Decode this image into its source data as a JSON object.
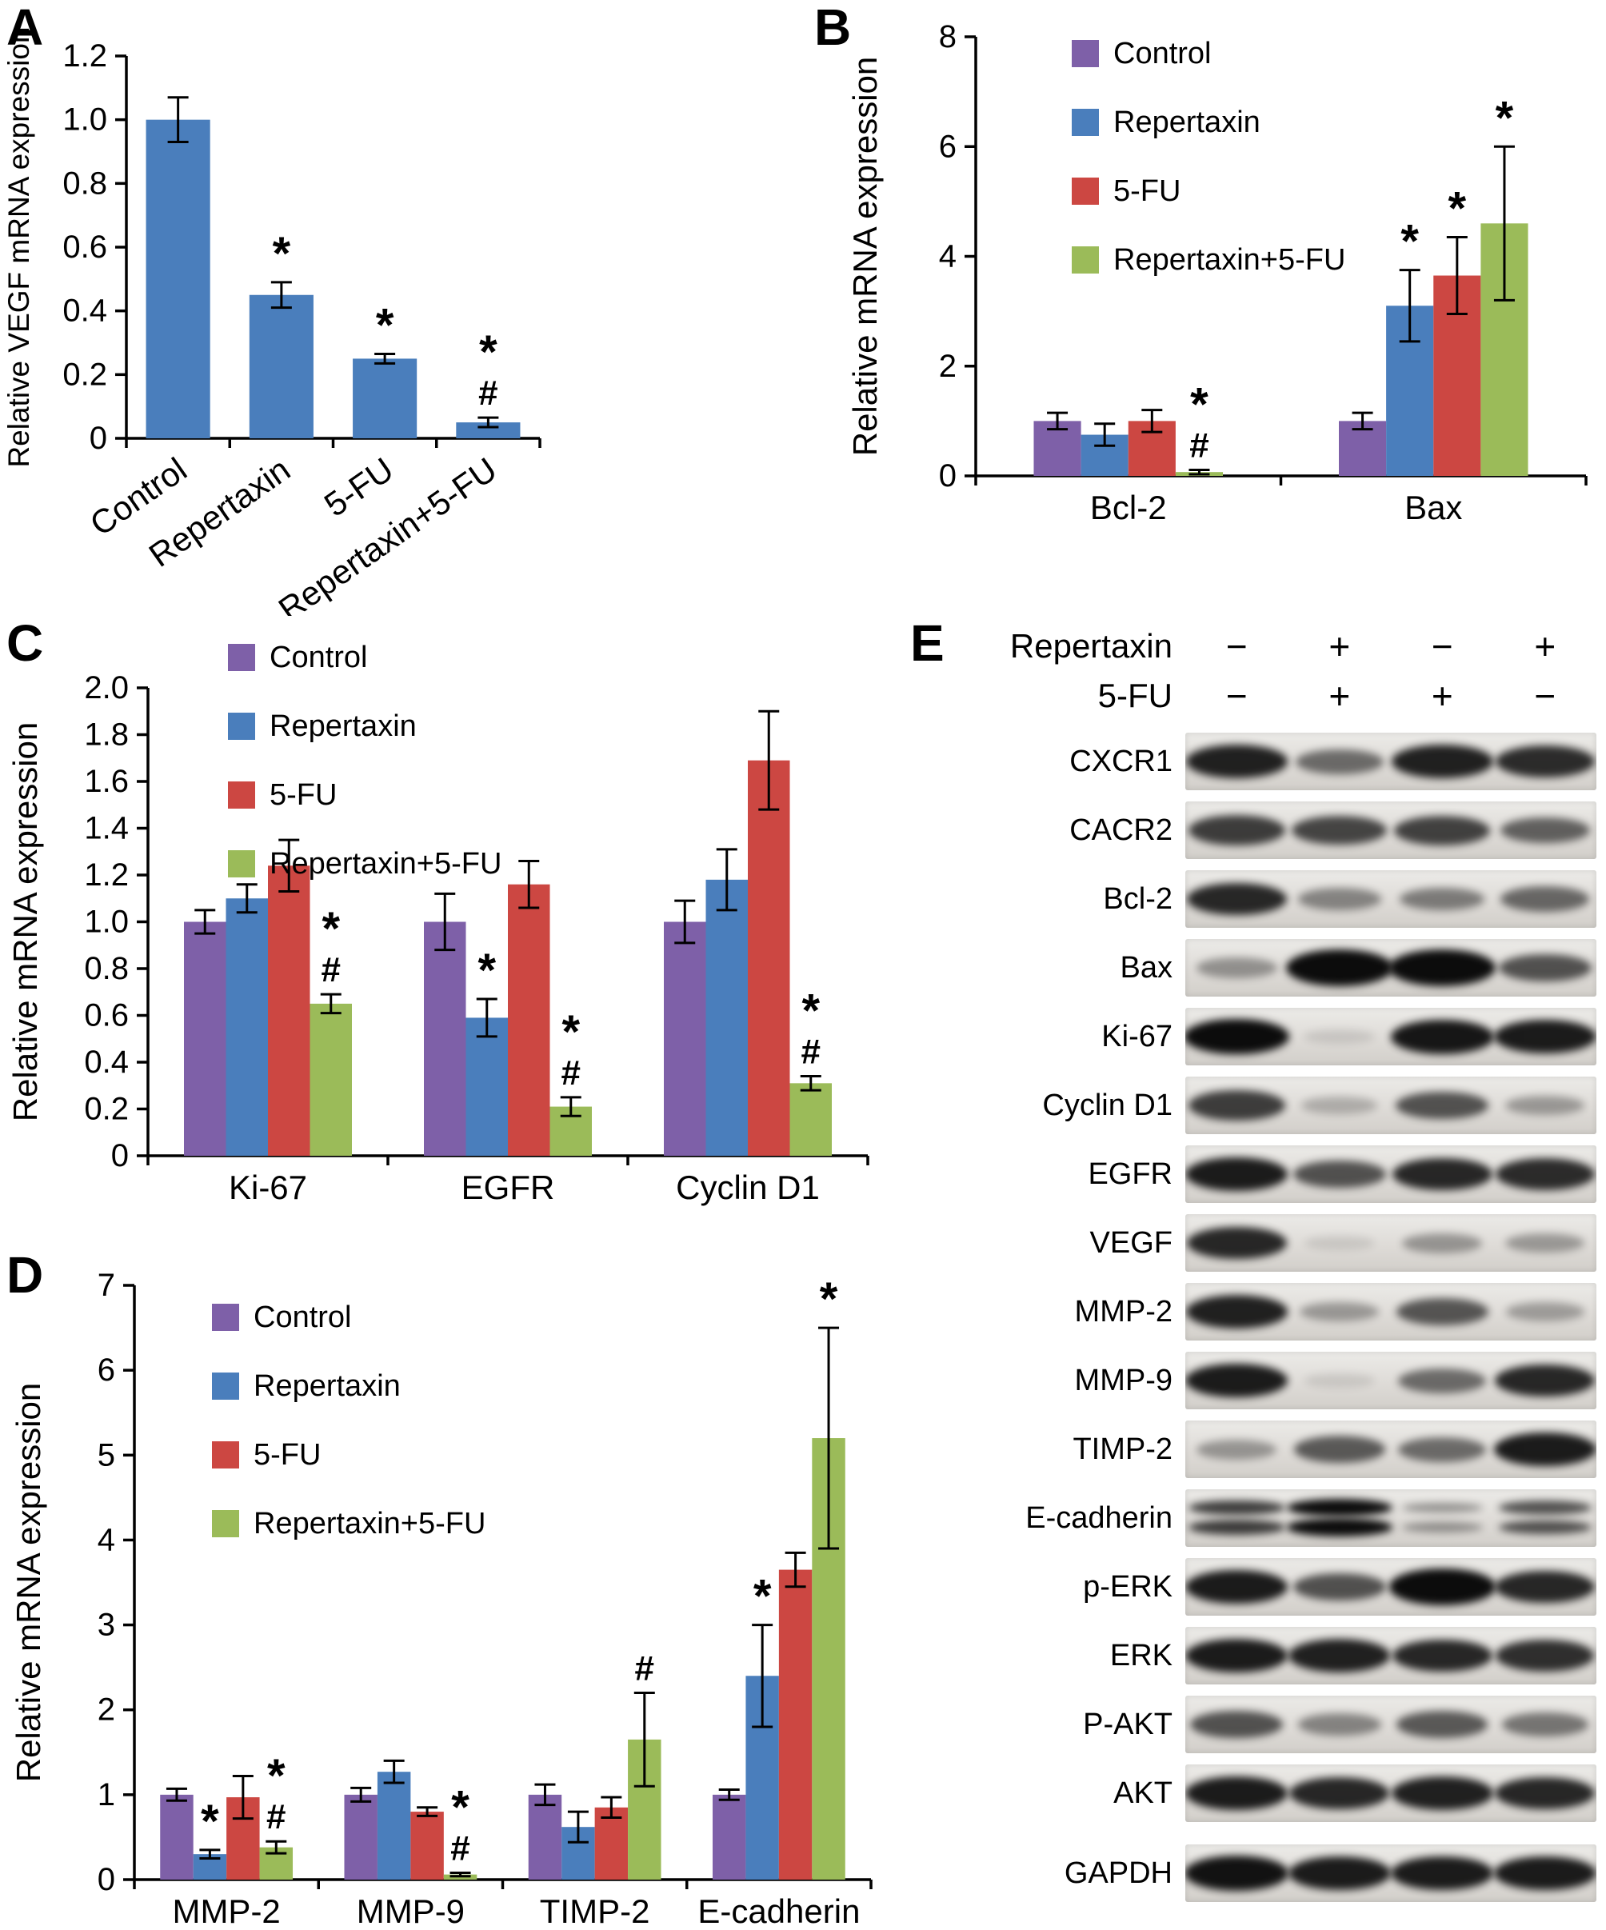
{
  "chart_data": [
    {
      "id": "A",
      "panel_label": "A",
      "type": "bar",
      "ylabel": "Relative VEGF mRNA expression",
      "ylim": [
        0,
        1.2
      ],
      "ytick_step": 0.2,
      "ytick_decimals": 1,
      "grid": false,
      "legend_position": "none",
      "categories": [
        "Control",
        "Repertaxin",
        "5-FU",
        "Repertaxin+5-FU"
      ],
      "series": [
        {
          "name": "VEGF",
          "color": "#4a7ebc",
          "values": [
            1.0,
            0.45,
            0.25,
            0.05
          ],
          "errors": [
            0.07,
            0.04,
            0.015,
            0.015
          ],
          "annotations": [
            "",
            "*",
            "*",
            "*#"
          ]
        }
      ],
      "legend": false,
      "xlabel_rotate": true
    },
    {
      "id": "B",
      "panel_label": "B",
      "type": "grouped-bar",
      "ylabel": "Relative mRNA expression",
      "ylim": [
        0,
        8
      ],
      "ytick_step": 2,
      "ytick_decimals": 0,
      "grid": false,
      "legend_position": "top-left-inside",
      "categories": [
        "Bcl-2",
        "Bax"
      ],
      "series": [
        {
          "name": "Control",
          "color": "#7e60a8",
          "values": [
            1.0,
            1.0
          ],
          "errors": [
            0.15,
            0.15
          ],
          "annotations": [
            "",
            ""
          ]
        },
        {
          "name": "Repertaxin",
          "color": "#4a7ebc",
          "values": [
            0.75,
            3.1
          ],
          "errors": [
            0.2,
            0.65
          ],
          "annotations": [
            "",
            "*"
          ]
        },
        {
          "name": "5-FU",
          "color": "#cc4742",
          "values": [
            1.0,
            3.65
          ],
          "errors": [
            0.2,
            0.7
          ],
          "annotations": [
            "",
            "*"
          ]
        },
        {
          "name": "Repertaxin+5-FU",
          "color": "#9bbb59",
          "values": [
            0.07,
            4.6
          ],
          "errors": [
            0.04,
            1.4
          ],
          "annotations": [
            "*#",
            "*"
          ]
        }
      ],
      "legend": true,
      "xlabel_rotate": false
    },
    {
      "id": "C",
      "panel_label": "C",
      "type": "grouped-bar",
      "ylabel": "Relative mRNA expression",
      "ylim": [
        0,
        2.0
      ],
      "ytick_step": 0.2,
      "ytick_decimals": 1,
      "grid": false,
      "legend_position": "top-left-inside",
      "categories": [
        "Ki-67",
        "EGFR",
        "Cyclin D1"
      ],
      "series": [
        {
          "name": "Control",
          "color": "#7e60a8",
          "values": [
            1.0,
            1.0,
            1.0
          ],
          "errors": [
            0.05,
            0.12,
            0.09
          ],
          "annotations": [
            "",
            "",
            ""
          ]
        },
        {
          "name": "Repertaxin",
          "color": "#4a7ebc",
          "values": [
            1.1,
            0.59,
            1.18
          ],
          "errors": [
            0.06,
            0.08,
            0.13
          ],
          "annotations": [
            "",
            "*",
            ""
          ]
        },
        {
          "name": "5-FU",
          "color": "#cc4742",
          "values": [
            1.24,
            1.16,
            1.69
          ],
          "errors": [
            0.11,
            0.1,
            0.21
          ],
          "annotations": [
            "",
            "",
            ""
          ]
        },
        {
          "name": "Repertaxin+5-FU",
          "color": "#9bbb59",
          "values": [
            0.65,
            0.21,
            0.31
          ],
          "errors": [
            0.04,
            0.04,
            0.03
          ],
          "annotations": [
            "*#",
            "*#",
            "*#"
          ]
        }
      ],
      "legend": true,
      "xlabel_rotate": false
    },
    {
      "id": "D",
      "panel_label": "D",
      "type": "grouped-bar",
      "ylabel": "Relative mRNA expression",
      "ylim": [
        0,
        7
      ],
      "ytick_step": 1,
      "ytick_decimals": 0,
      "grid": false,
      "legend_position": "top-left-inside",
      "categories": [
        "MMP-2",
        "MMP-9",
        "TIMP-2",
        "E-cadherin"
      ],
      "series": [
        {
          "name": "Control",
          "color": "#7e60a8",
          "values": [
            1.0,
            1.0,
            1.0,
            1.0
          ],
          "errors": [
            0.07,
            0.08,
            0.12,
            0.06
          ],
          "annotations": [
            "",
            "",
            "",
            ""
          ]
        },
        {
          "name": "Repertaxin",
          "color": "#4a7ebc",
          "values": [
            0.3,
            1.27,
            0.62,
            2.4
          ],
          "errors": [
            0.05,
            0.13,
            0.18,
            0.6
          ],
          "annotations": [
            "*",
            "",
            "",
            "*"
          ]
        },
        {
          "name": "5-FU",
          "color": "#cc4742",
          "values": [
            0.97,
            0.8,
            0.85,
            3.65
          ],
          "errors": [
            0.25,
            0.05,
            0.12,
            0.2
          ],
          "annotations": [
            "",
            "",
            "",
            ""
          ]
        },
        {
          "name": "Repertaxin+5-FU",
          "color": "#9bbb59",
          "values": [
            0.38,
            0.06,
            1.65,
            5.2
          ],
          "errors": [
            0.07,
            0.02,
            0.55,
            1.3
          ],
          "annotations": [
            "*#",
            "*#",
            "#",
            "*"
          ]
        }
      ],
      "legend": true,
      "xlabel_rotate": false
    }
  ],
  "western_blot": {
    "panel_label": "E",
    "treatments": [
      {
        "label": "Repertaxin",
        "signs": [
          "−",
          "+",
          "−",
          "+"
        ]
      },
      {
        "label": "5-FU",
        "signs": [
          "−",
          "+",
          "+",
          "−"
        ]
      }
    ],
    "rows": [
      {
        "protein": "CXCR1",
        "bands": [
          0.85,
          0.5,
          0.85,
          0.8
        ]
      },
      {
        "protein": "CACR2",
        "bands": [
          0.72,
          0.68,
          0.7,
          0.55
        ]
      },
      {
        "protein": "Bcl-2",
        "bands": [
          0.82,
          0.38,
          0.42,
          0.52
        ]
      },
      {
        "protein": "Bax",
        "bands": [
          0.32,
          1.0,
          1.0,
          0.62
        ]
      },
      {
        "protein": "Ki-67",
        "bands": [
          0.95,
          0.06,
          0.9,
          0.88
        ]
      },
      {
        "protein": "Cyclin D1",
        "bands": [
          0.72,
          0.18,
          0.62,
          0.28
        ]
      },
      {
        "protein": "EGFR",
        "bands": [
          0.88,
          0.62,
          0.82,
          0.8
        ]
      },
      {
        "protein": "VEGF",
        "bands": [
          0.82,
          0.05,
          0.3,
          0.28
        ]
      },
      {
        "protein": "MMP-2",
        "bands": [
          0.85,
          0.28,
          0.6,
          0.26
        ]
      },
      {
        "protein": "MMP-9",
        "bands": [
          0.88,
          0.05,
          0.5,
          0.82
        ]
      },
      {
        "protein": "TIMP-2",
        "bands": [
          0.3,
          0.58,
          0.5,
          0.88
        ]
      },
      {
        "protein": "E-cadherin",
        "bands": [
          0.72,
          0.95,
          0.32,
          0.62
        ],
        "double": true
      },
      {
        "protein": "p-ERK",
        "bands": [
          0.88,
          0.62,
          0.97,
          0.82
        ]
      },
      {
        "protein": "ERK",
        "bands": [
          0.88,
          0.85,
          0.82,
          0.78
        ]
      },
      {
        "protein": "P-AKT",
        "bands": [
          0.62,
          0.38,
          0.58,
          0.45
        ]
      },
      {
        "protein": "AKT",
        "bands": [
          0.88,
          0.82,
          0.85,
          0.82
        ]
      },
      {
        "protein": "GAPDH",
        "bands": [
          0.92,
          0.88,
          0.88,
          0.88
        ],
        "gap_before": true
      }
    ]
  }
}
